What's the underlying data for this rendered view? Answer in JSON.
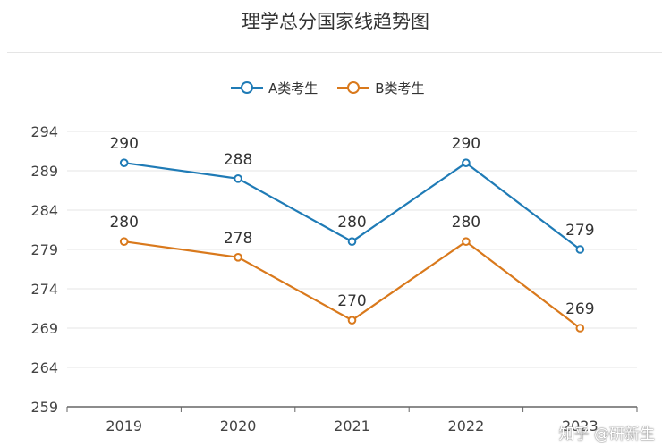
{
  "title": "理学总分国家线趋势图",
  "watermark": "知乎 @研新生",
  "colors": {
    "A": "#1f7bb6",
    "B": "#d9791c",
    "grid": "#e6e6e6",
    "axis": "#666666"
  },
  "chart_data": {
    "type": "line",
    "title": "理学总分国家线趋势图",
    "categories": [
      "2019",
      "2020",
      "2021",
      "2022",
      "2023"
    ],
    "ylim": [
      259,
      294
    ],
    "yticks": [
      259,
      264,
      269,
      274,
      279,
      284,
      289,
      294
    ],
    "grid": true,
    "legend_position": "top-center",
    "series": [
      {
        "name": "A类考生",
        "key": "A",
        "values": [
          290,
          288,
          280,
          290,
          279
        ]
      },
      {
        "name": "B类考生",
        "key": "B",
        "values": [
          280,
          278,
          270,
          280,
          269
        ]
      }
    ]
  }
}
